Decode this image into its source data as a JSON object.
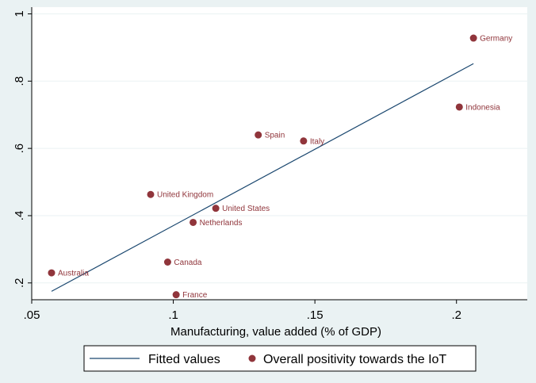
{
  "chart_data": {
    "type": "scatter",
    "title": "",
    "xlabel": "Manufacturing, value added (% of GDP)",
    "ylabel": "",
    "xlim": [
      0.05,
      0.225
    ],
    "ylim": [
      0.15,
      1.02
    ],
    "xticks": [
      0.05,
      0.1,
      0.15,
      0.2
    ],
    "xtick_labels": [
      ".05",
      ".1",
      ".15",
      ".2"
    ],
    "yticks": [
      0.2,
      0.4,
      0.6,
      0.8,
      1.0
    ],
    "ytick_labels": [
      ".2",
      ".4",
      ".6",
      ".8",
      "1"
    ],
    "grid": "horizontal",
    "legend_position": "bottom",
    "colors": {
      "background": "#eaf2f3",
      "plot_background": "#ffffff",
      "fit_line": "#1a476f",
      "marker": "#90353b",
      "grid": "#eaf2f3"
    },
    "series": [
      {
        "name": "Overall positivity towards the IoT",
        "type": "scatter",
        "points": [
          {
            "label": "Australia",
            "x": 0.057,
            "y": 0.23
          },
          {
            "label": "France",
            "x": 0.101,
            "y": 0.165
          },
          {
            "label": "Canada",
            "x": 0.098,
            "y": 0.262
          },
          {
            "label": "Netherlands",
            "x": 0.107,
            "y": 0.38
          },
          {
            "label": "United States",
            "x": 0.115,
            "y": 0.422
          },
          {
            "label": "United Kingdom",
            "x": 0.092,
            "y": 0.463
          },
          {
            "label": "Spain",
            "x": 0.13,
            "y": 0.64
          },
          {
            "label": "Italy",
            "x": 0.146,
            "y": 0.622
          },
          {
            "label": "Indonesia",
            "x": 0.201,
            "y": 0.723
          },
          {
            "label": "Germany",
            "x": 0.206,
            "y": 0.928
          }
        ]
      },
      {
        "name": "Fitted values",
        "type": "line",
        "x": [
          0.057,
          0.206
        ],
        "y": [
          0.175,
          0.852
        ]
      }
    ],
    "legend": [
      {
        "label": "Fitted values",
        "kind": "line"
      },
      {
        "label": "Overall positivity towards the IoT",
        "kind": "marker"
      }
    ]
  }
}
